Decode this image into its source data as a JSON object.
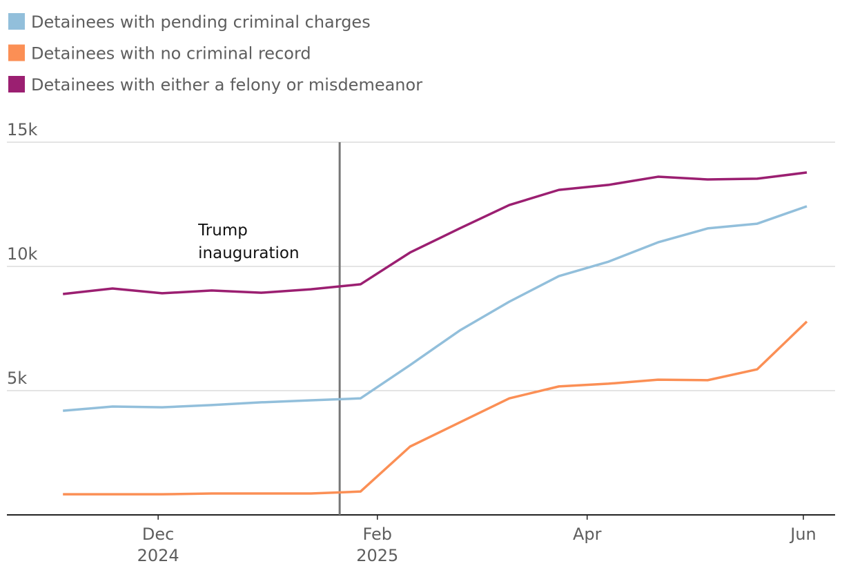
{
  "chart_data": {
    "type": "line",
    "x": [
      0,
      1,
      2,
      3,
      4,
      5,
      6,
      7,
      8,
      9,
      10,
      11,
      12,
      13,
      14,
      15
    ],
    "xlim": [
      -1.13,
      15.57
    ],
    "xticks": [
      {
        "value": 1.92,
        "label": "Dec",
        "year": "2024"
      },
      {
        "value": 6.34,
        "label": "Feb",
        "year": "2025"
      },
      {
        "value": 10.57,
        "label": "Apr"
      },
      {
        "value": 14.93,
        "label": "Jun"
      }
    ],
    "ylim": [
      0,
      15
    ],
    "yticks": [
      {
        "value": 5,
        "label": "5k"
      },
      {
        "value": 10,
        "label": "10k"
      },
      {
        "value": 15,
        "label": "15k"
      }
    ],
    "grid": true,
    "series": [
      {
        "name": "Detainees with pending criminal charges",
        "color": "#92bfdb",
        "values": [
          4.19,
          4.36,
          4.33,
          4.42,
          4.53,
          4.61,
          4.69,
          6.03,
          7.42,
          8.58,
          9.61,
          10.19,
          10.97,
          11.53,
          11.72,
          12.42
        ]
      },
      {
        "name": "Detainees with no criminal record",
        "color": "#fb8f55",
        "values": [
          0.83,
          0.83,
          0.83,
          0.86,
          0.86,
          0.86,
          0.94,
          2.75,
          3.72,
          4.69,
          5.17,
          5.28,
          5.44,
          5.42,
          5.86,
          7.78
        ]
      },
      {
        "name": "Detainees with either a felony or misdemeanor",
        "color": "#9b1f71",
        "values": [
          8.89,
          9.11,
          8.92,
          9.03,
          8.94,
          9.08,
          9.28,
          10.56,
          11.53,
          12.47,
          13.08,
          13.28,
          13.61,
          13.5,
          13.53,
          13.78
        ]
      }
    ],
    "annotations": [
      {
        "x": 5.58,
        "text": [
          "Trump",
          "inauguration"
        ]
      }
    ]
  }
}
